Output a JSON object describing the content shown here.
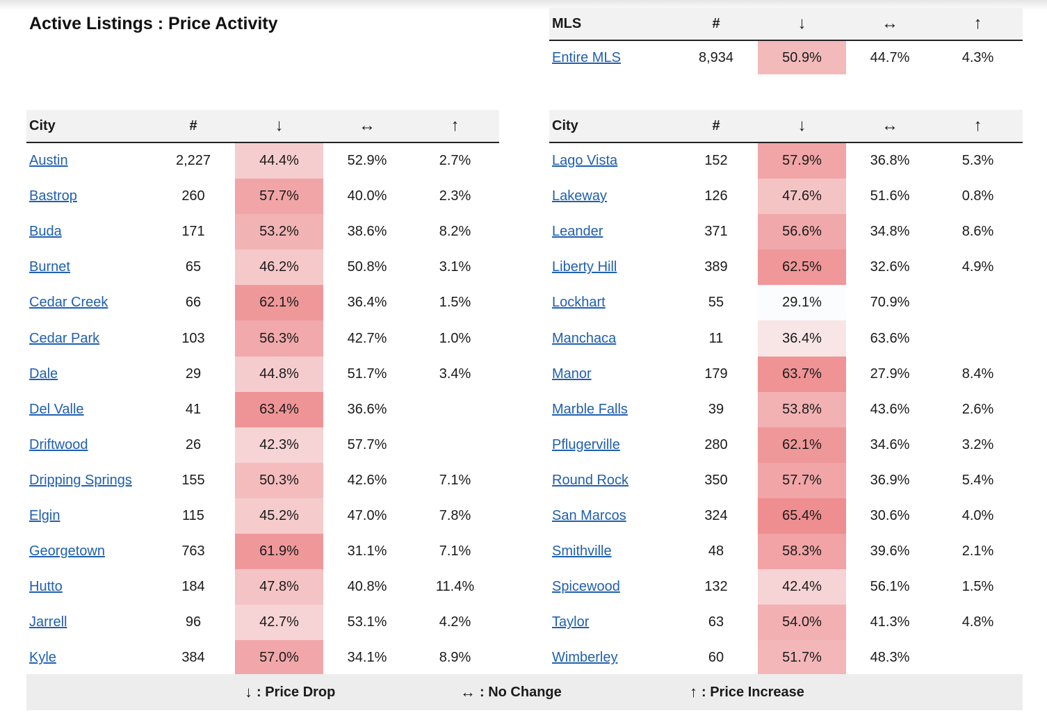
{
  "title": "Active Listings : Price Activity",
  "columns": {
    "city": "City",
    "mls": "MLS",
    "count": "#",
    "down": "↓",
    "same": "↔",
    "up": "↑"
  },
  "mls": {
    "name": "Entire MLS",
    "count": "8,934",
    "down": "50.9%",
    "same": "44.7%",
    "up": "4.3%",
    "down_value": 50.9
  },
  "left_rows": [
    {
      "city": "Austin",
      "count": "2,227",
      "down": "44.4%",
      "same": "52.9%",
      "up": "2.7%",
      "down_value": 44.4
    },
    {
      "city": "Bastrop",
      "count": "260",
      "down": "57.7%",
      "same": "40.0%",
      "up": "2.3%",
      "down_value": 57.7
    },
    {
      "city": "Buda",
      "count": "171",
      "down": "53.2%",
      "same": "38.6%",
      "up": "8.2%",
      "down_value": 53.2
    },
    {
      "city": "Burnet",
      "count": "65",
      "down": "46.2%",
      "same": "50.8%",
      "up": "3.1%",
      "down_value": 46.2
    },
    {
      "city": "Cedar Creek",
      "count": "66",
      "down": "62.1%",
      "same": "36.4%",
      "up": "1.5%",
      "down_value": 62.1
    },
    {
      "city": "Cedar Park",
      "count": "103",
      "down": "56.3%",
      "same": "42.7%",
      "up": "1.0%",
      "down_value": 56.3
    },
    {
      "city": "Dale",
      "count": "29",
      "down": "44.8%",
      "same": "51.7%",
      "up": "3.4%",
      "down_value": 44.8
    },
    {
      "city": "Del Valle",
      "count": "41",
      "down": "63.4%",
      "same": "36.6%",
      "up": "",
      "down_value": 63.4
    },
    {
      "city": "Driftwood",
      "count": "26",
      "down": "42.3%",
      "same": "57.7%",
      "up": "",
      "down_value": 42.3
    },
    {
      "city": "Dripping Springs",
      "count": "155",
      "down": "50.3%",
      "same": "42.6%",
      "up": "7.1%",
      "down_value": 50.3
    },
    {
      "city": "Elgin",
      "count": "115",
      "down": "45.2%",
      "same": "47.0%",
      "up": "7.8%",
      "down_value": 45.2
    },
    {
      "city": "Georgetown",
      "count": "763",
      "down": "61.9%",
      "same": "31.1%",
      "up": "7.1%",
      "down_value": 61.9
    },
    {
      "city": "Hutto",
      "count": "184",
      "down": "47.8%",
      "same": "40.8%",
      "up": "11.4%",
      "down_value": 47.8
    },
    {
      "city": "Jarrell",
      "count": "96",
      "down": "42.7%",
      "same": "53.1%",
      "up": "4.2%",
      "down_value": 42.7
    },
    {
      "city": "Kyle",
      "count": "384",
      "down": "57.0%",
      "same": "34.1%",
      "up": "8.9%",
      "down_value": 57.0
    }
  ],
  "right_rows": [
    {
      "city": "Lago Vista",
      "count": "152",
      "down": "57.9%",
      "same": "36.8%",
      "up": "5.3%",
      "down_value": 57.9
    },
    {
      "city": "Lakeway",
      "count": "126",
      "down": "47.6%",
      "same": "51.6%",
      "up": "0.8%",
      "down_value": 47.6
    },
    {
      "city": "Leander",
      "count": "371",
      "down": "56.6%",
      "same": "34.8%",
      "up": "8.6%",
      "down_value": 56.6
    },
    {
      "city": "Liberty Hill",
      "count": "389",
      "down": "62.5%",
      "same": "32.6%",
      "up": "4.9%",
      "down_value": 62.5
    },
    {
      "city": "Lockhart",
      "count": "55",
      "down": "29.1%",
      "same": "70.9%",
      "up": "",
      "down_value": 29.1
    },
    {
      "city": "Manchaca",
      "count": "11",
      "down": "36.4%",
      "same": "63.6%",
      "up": "",
      "down_value": 36.4
    },
    {
      "city": "Manor",
      "count": "179",
      "down": "63.7%",
      "same": "27.9%",
      "up": "8.4%",
      "down_value": 63.7
    },
    {
      "city": "Marble Falls",
      "count": "39",
      "down": "53.8%",
      "same": "43.6%",
      "up": "2.6%",
      "down_value": 53.8
    },
    {
      "city": "Pflugerville",
      "count": "280",
      "down": "62.1%",
      "same": "34.6%",
      "up": "3.2%",
      "down_value": 62.1
    },
    {
      "city": "Round Rock",
      "count": "350",
      "down": "57.7%",
      "same": "36.9%",
      "up": "5.4%",
      "down_value": 57.7
    },
    {
      "city": "San Marcos",
      "count": "324",
      "down": "65.4%",
      "same": "30.6%",
      "up": "4.0%",
      "down_value": 65.4
    },
    {
      "city": "Smithville",
      "count": "48",
      "down": "58.3%",
      "same": "39.6%",
      "up": "2.1%",
      "down_value": 58.3
    },
    {
      "city": "Spicewood",
      "count": "132",
      "down": "42.4%",
      "same": "56.1%",
      "up": "1.5%",
      "down_value": 42.4
    },
    {
      "city": "Taylor",
      "count": "63",
      "down": "54.0%",
      "same": "41.3%",
      "up": "4.8%",
      "down_value": 54.0
    },
    {
      "city": "Wimberley",
      "count": "60",
      "down": "51.7%",
      "same": "48.3%",
      "up": "",
      "down_value": 51.7
    }
  ],
  "legend": {
    "down_arrow": "↓",
    "down_label": ": Price Drop",
    "same_arrow": "↔",
    "same_label": ": No Change",
    "up_arrow": "↑",
    "up_label": ": Price Increase"
  },
  "colors": {
    "link": "#1f5fb0",
    "header_bg": "#f2f2f2",
    "legend_bg": "#ededed",
    "heat_low": "#fbfcfd",
    "heat_high": "#ee8c8e"
  }
}
